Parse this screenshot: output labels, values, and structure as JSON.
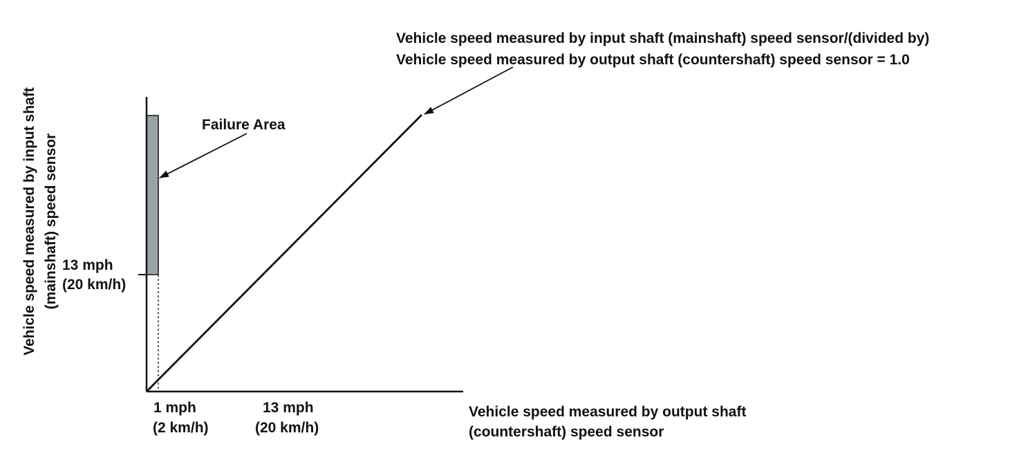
{
  "ratio_annotation": {
    "line1": "Vehicle speed measured by input shaft (mainshaft) speed sensor/(divided by)",
    "line2": "Vehicle speed measured by output shaft (countershaft) speed sensor = 1.0"
  },
  "failure_area_label": "Failure Area",
  "y_axis": {
    "line1": "Vehicle speed measured by input shaft",
    "line2": "(mainshaft) speed sensor",
    "tick_mph": "13 mph",
    "tick_kmh": "(20 km/h)"
  },
  "x_axis": {
    "line1": "Vehicle speed measured by output shaft",
    "line2": "(countershaft) speed sensor",
    "tick1_mph": "1 mph",
    "tick1_kmh": "(2 km/h)",
    "tick2_mph": "13 mph",
    "tick2_kmh": "(20 km/h)"
  },
  "colors": {
    "failure_area_fill": "#9aa3a8",
    "line": "#111111"
  }
}
